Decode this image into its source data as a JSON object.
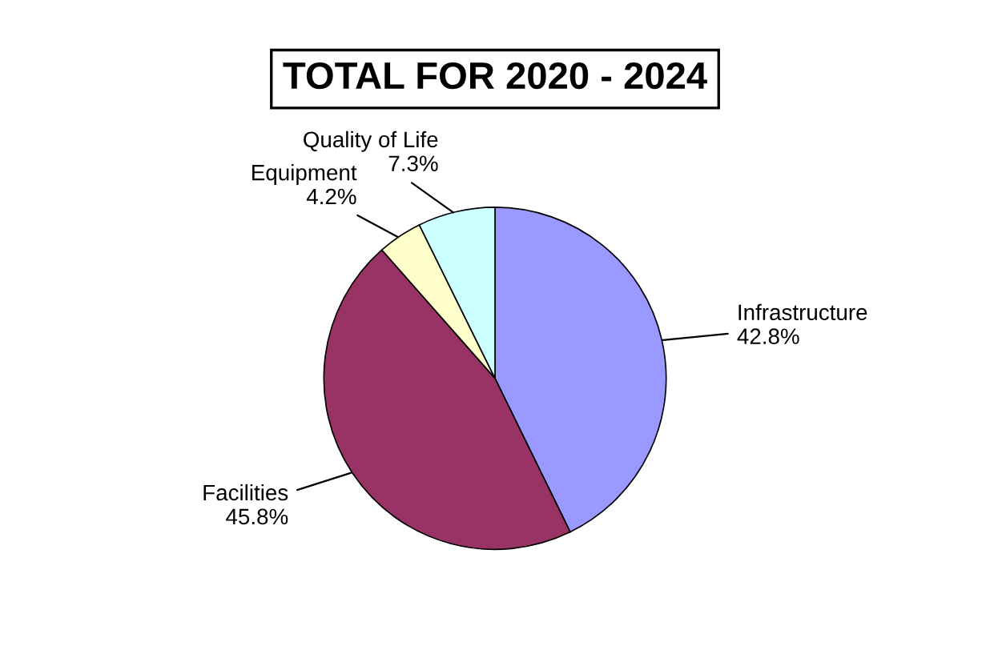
{
  "chart_data": {
    "type": "pie",
    "title": "TOTAL FOR 2020 - 2024",
    "categories": [
      "Infrastructure",
      "Facilities",
      "Equipment",
      "Quality of Life"
    ],
    "values": [
      42.8,
      45.8,
      4.2,
      7.3
    ],
    "value_labels": [
      "42.8%",
      "45.8%",
      "4.2%",
      "7.3%"
    ],
    "colors": [
      "#9999ff",
      "#993366",
      "#ffffcc",
      "#ccffff"
    ]
  }
}
